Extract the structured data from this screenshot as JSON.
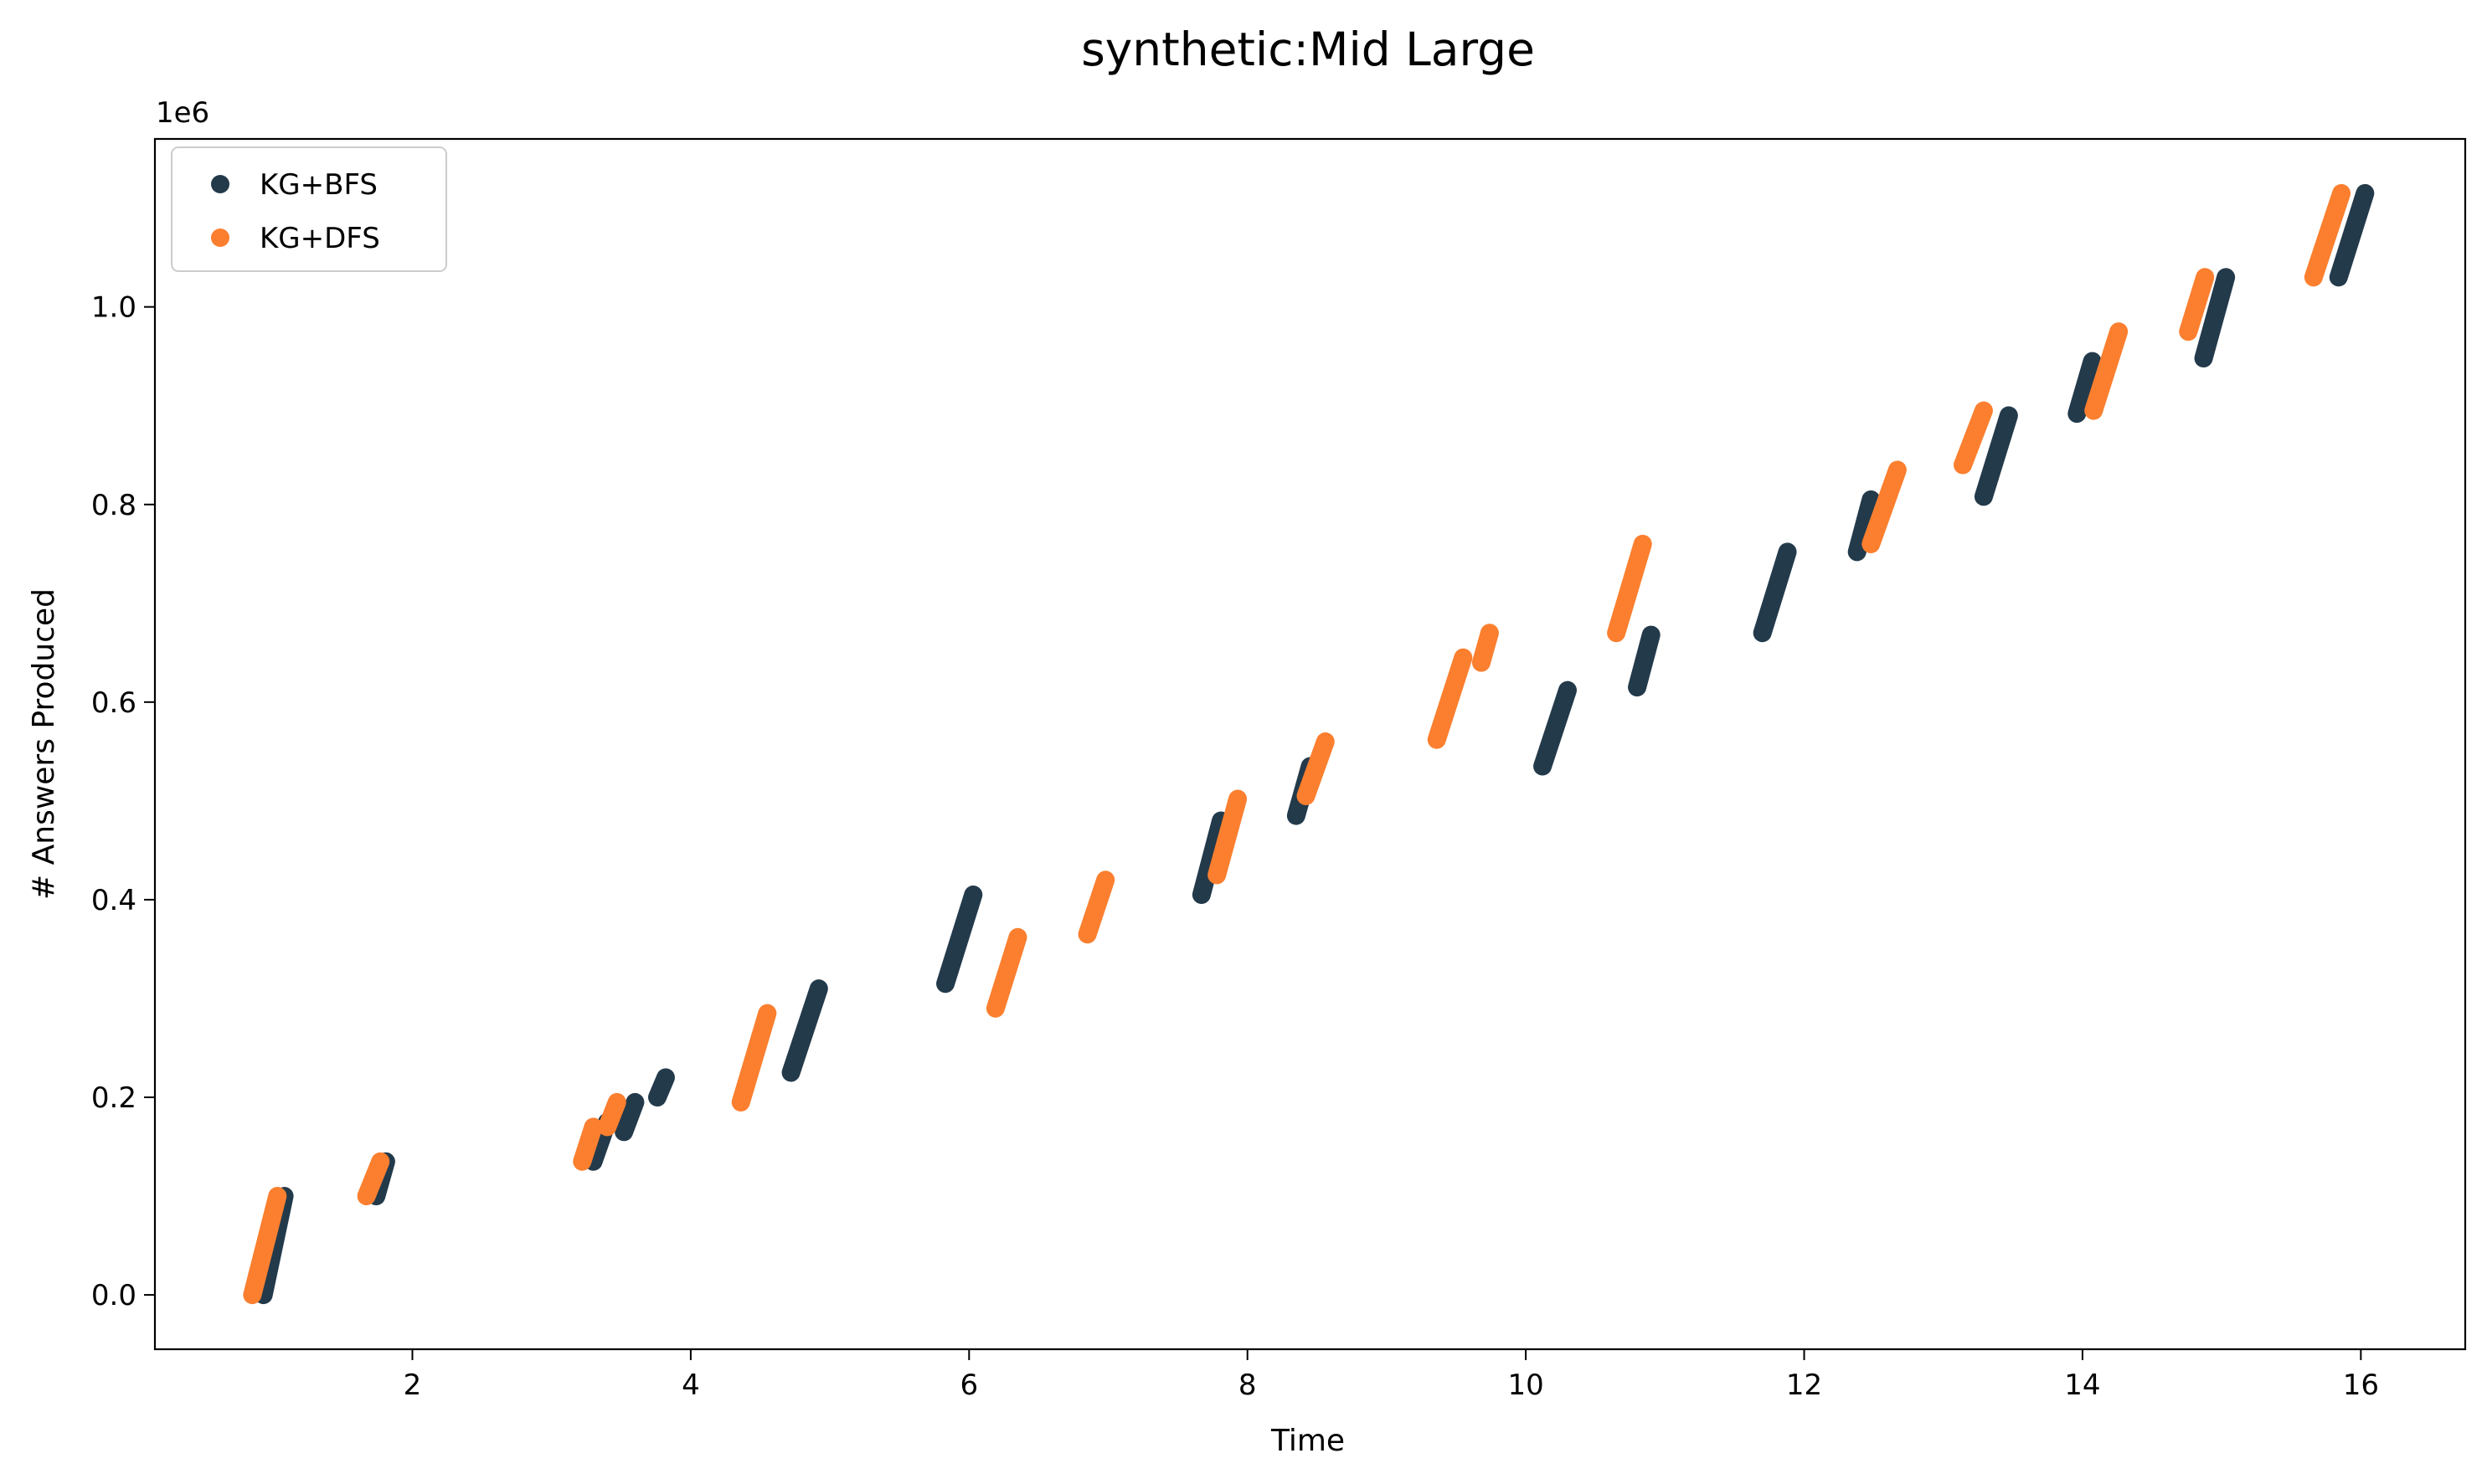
{
  "chart_data": {
    "type": "scatter",
    "title": "synthetic:Mid Large",
    "xlabel": "Time",
    "ylabel": "# Answers Produced",
    "y_offset_label": "1e6",
    "xlim": [
      0.15,
      16.75
    ],
    "ylim": [
      -0.055,
      1.17
    ],
    "xticks": [
      2,
      4,
      6,
      8,
      10,
      12,
      14,
      16
    ],
    "xtick_labels": [
      "2",
      "4",
      "6",
      "8",
      "10",
      "12",
      "14",
      "16"
    ],
    "yticks": [
      0.0,
      0.2,
      0.4,
      0.6,
      0.8,
      1.0
    ],
    "ytick_labels": [
      "0.0",
      "0.2",
      "0.4",
      "0.6",
      "0.8",
      "1.0"
    ],
    "grid": false,
    "legend_position": "top-left",
    "series": [
      {
        "name": "KG+BFS",
        "color": "#233A4B",
        "segments": [
          {
            "x": [
              0.93,
              1.08
            ],
            "y": [
              0.0,
              0.1
            ]
          },
          {
            "x": [
              1.74,
              1.81
            ],
            "y": [
              0.1,
              0.135
            ]
          },
          {
            "x": [
              3.3,
              3.4
            ],
            "y": [
              0.135,
              0.175
            ]
          },
          {
            "x": [
              3.52,
              3.6
            ],
            "y": [
              0.165,
              0.195
            ]
          },
          {
            "x": [
              3.76,
              3.82
            ],
            "y": [
              0.2,
              0.22
            ]
          },
          {
            "x": [
              4.72,
              4.92
            ],
            "y": [
              0.225,
              0.31
            ]
          },
          {
            "x": [
              5.83,
              6.03
            ],
            "y": [
              0.315,
              0.405
            ]
          },
          {
            "x": [
              7.67,
              7.81
            ],
            "y": [
              0.405,
              0.48
            ]
          },
          {
            "x": [
              8.35,
              8.45
            ],
            "y": [
              0.485,
              0.535
            ]
          },
          {
            "x": [
              10.12,
              10.3
            ],
            "y": [
              0.535,
              0.612
            ]
          },
          {
            "x": [
              10.8,
              10.9
            ],
            "y": [
              0.615,
              0.668
            ]
          },
          {
            "x": [
              11.7,
              11.88
            ],
            "y": [
              0.67,
              0.752
            ]
          },
          {
            "x": [
              12.38,
              12.48
            ],
            "y": [
              0.752,
              0.805
            ]
          },
          {
            "x": [
              13.29,
              13.47
            ],
            "y": [
              0.808,
              0.89
            ]
          },
          {
            "x": [
              13.96,
              14.07
            ],
            "y": [
              0.892,
              0.945
            ]
          },
          {
            "x": [
              14.87,
              15.03
            ],
            "y": [
              0.948,
              1.03
            ]
          },
          {
            "x": [
              15.84,
              16.03
            ],
            "y": [
              1.03,
              1.115
            ]
          }
        ]
      },
      {
        "name": "KG+DFS",
        "color": "#FB7F2F",
        "segments": [
          {
            "x": [
              0.85,
              1.03
            ],
            "y": [
              0.0,
              0.1
            ]
          },
          {
            "x": [
              1.67,
              1.77
            ],
            "y": [
              0.1,
              0.135
            ]
          },
          {
            "x": [
              3.22,
              3.3
            ],
            "y": [
              0.135,
              0.17
            ]
          },
          {
            "x": [
              3.4,
              3.47
            ],
            "y": [
              0.17,
              0.195
            ]
          },
          {
            "x": [
              4.36,
              4.55
            ],
            "y": [
              0.195,
              0.285
            ]
          },
          {
            "x": [
              6.19,
              6.35
            ],
            "y": [
              0.29,
              0.362
            ]
          },
          {
            "x": [
              6.85,
              6.98
            ],
            "y": [
              0.365,
              0.42
            ]
          },
          {
            "x": [
              7.78,
              7.93
            ],
            "y": [
              0.425,
              0.502
            ]
          },
          {
            "x": [
              8.42,
              8.56
            ],
            "y": [
              0.505,
              0.56
            ]
          },
          {
            "x": [
              9.36,
              9.55
            ],
            "y": [
              0.562,
              0.645
            ]
          },
          {
            "x": [
              9.68,
              9.74
            ],
            "y": [
              0.64,
              0.67
            ]
          },
          {
            "x": [
              10.65,
              10.84
            ],
            "y": [
              0.67,
              0.76
            ]
          },
          {
            "x": [
              12.48,
              12.67
            ],
            "y": [
              0.76,
              0.835
            ]
          },
          {
            "x": [
              13.14,
              13.29
            ],
            "y": [
              0.84,
              0.895
            ]
          },
          {
            "x": [
              14.08,
              14.26
            ],
            "y": [
              0.895,
              0.975
            ]
          },
          {
            "x": [
              14.76,
              14.88
            ],
            "y": [
              0.975,
              1.03
            ]
          },
          {
            "x": [
              15.66,
              15.86
            ],
            "y": [
              1.03,
              1.115
            ]
          }
        ]
      }
    ]
  }
}
